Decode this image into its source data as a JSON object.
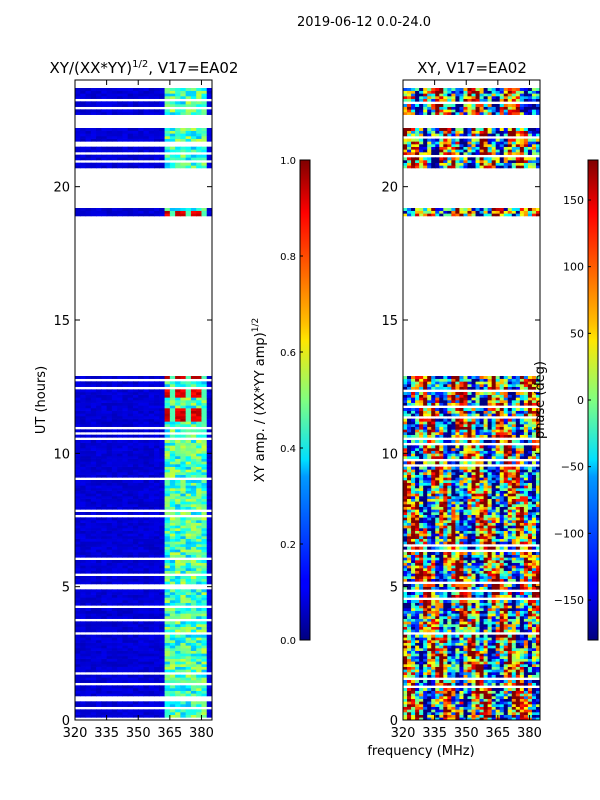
{
  "figure": {
    "suptitle": "2019-06-12 0.0-24.0",
    "xlabel": "frequency (MHz)"
  },
  "chart_data": [
    {
      "type": "heatmap",
      "title_main": "XY/(XX*YY)",
      "title_exp": "1/2",
      "title_suffix": ", V17=EA02",
      "xlabel": "frequency (MHz)",
      "ylabel": "UT (hours)",
      "xlim": [
        320,
        385
      ],
      "ylim": [
        0,
        24
      ],
      "xticks": [
        320,
        335,
        350,
        365,
        380
      ],
      "yticks": [
        0,
        5,
        10,
        15,
        20
      ],
      "colorbar": {
        "label_main": "XY amp. / (XX*YY amp)",
        "label_exp": "1/2",
        "range": [
          0.0,
          1.0
        ],
        "ticks": [
          "0.0",
          "0.2",
          "0.4",
          "0.6",
          "0.8",
          "1.0"
        ],
        "tick_values": [
          0.0,
          0.2,
          0.4,
          0.6,
          0.8,
          1.0
        ]
      },
      "data_bands_hours": [
        [
          0.0,
          12.9
        ],
        [
          18.9,
          19.2
        ],
        [
          20.7,
          22.2
        ],
        [
          22.6,
          23.7
        ]
      ],
      "signal_band_mhz": [
        362,
        381
      ],
      "high_value_time_ranges_hours": [
        [
          11.2,
          11.7
        ],
        [
          12.1,
          12.5
        ],
        [
          12.7,
          12.9
        ],
        [
          18.9,
          19.1
        ]
      ]
    },
    {
      "type": "heatmap",
      "title": "XY, V17=EA02",
      "xlabel": "frequency (MHz)",
      "ylabel": "",
      "xlim": [
        320,
        385
      ],
      "ylim": [
        0,
        24
      ],
      "xticks": [
        320,
        335,
        350,
        365,
        380
      ],
      "yticks": [
        0,
        5,
        10,
        15,
        20
      ],
      "colorbar": {
        "label": "phase (deg)",
        "range": [
          -180,
          180
        ],
        "ticks": [
          "−150",
          "−100",
          "−50",
          "0",
          "50",
          "100",
          "150"
        ],
        "tick_values": [
          -150,
          -100,
          -50,
          0,
          50,
          100,
          150
        ]
      },
      "data_bands_hours": [
        [
          0.0,
          12.9
        ],
        [
          18.9,
          19.2
        ],
        [
          20.7,
          22.2
        ],
        [
          22.6,
          23.7
        ]
      ]
    }
  ]
}
